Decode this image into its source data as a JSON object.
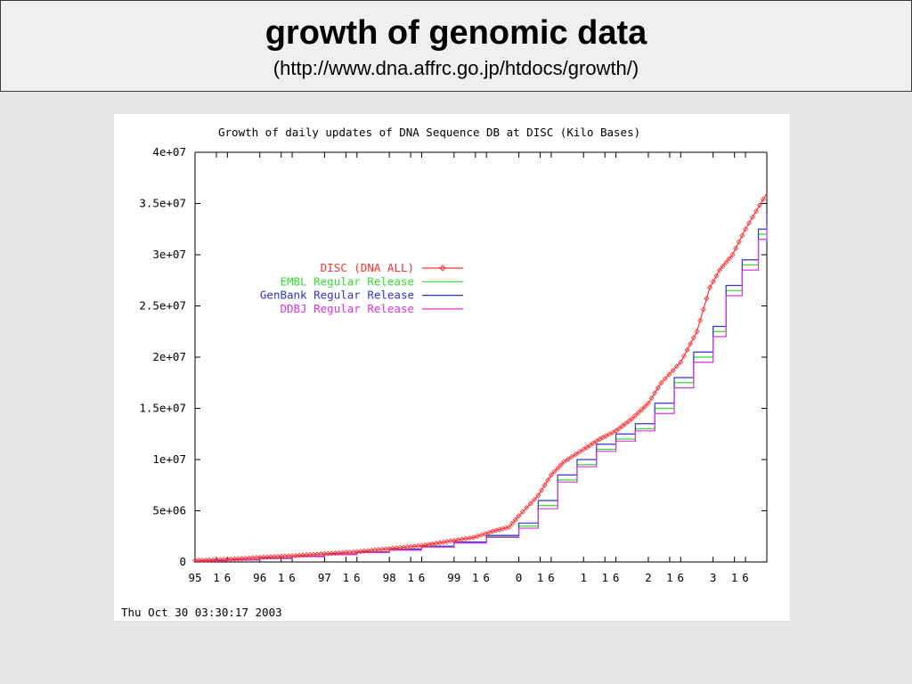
{
  "slide": {
    "title": "growth of genomic data",
    "subtitle": "(http://www.dna.affrc.go.jp/htdocs/growth/)"
  },
  "chart_data": {
    "type": "line",
    "title": "Growth of daily updates of DNA Sequence DB at DISC  (Kilo Bases)",
    "timestamp": "Thu Oct 30 03:30:17 2003",
    "ylim": [
      0,
      40000000
    ],
    "xlim": [
      1995.0,
      2003.83
    ],
    "yticks": [
      0,
      5000000,
      10000000,
      15000000,
      20000000,
      25000000,
      30000000,
      35000000,
      40000000
    ],
    "ytick_labels": [
      "0",
      "5e+06",
      "1e+07",
      "1.5e+07",
      "2e+07",
      "2.5e+07",
      "3e+07",
      "3.5e+07",
      "4e+07"
    ],
    "xtick_labels": [
      {
        "label": "95",
        "x": 1995.0
      },
      {
        "label": "1",
        "x": 1995.33
      },
      {
        "label": "6",
        "x": 1995.5
      },
      {
        "label": "96",
        "x": 1996.0
      },
      {
        "label": "1",
        "x": 1996.33
      },
      {
        "label": "6",
        "x": 1996.5
      },
      {
        "label": "97",
        "x": 1997.0
      },
      {
        "label": "1",
        "x": 1997.33
      },
      {
        "label": "6",
        "x": 1997.5
      },
      {
        "label": "98",
        "x": 1998.0
      },
      {
        "label": "1",
        "x": 1998.33
      },
      {
        "label": "6",
        "x": 1998.5
      },
      {
        "label": "99",
        "x": 1999.0
      },
      {
        "label": "1",
        "x": 1999.33
      },
      {
        "label": "6",
        "x": 1999.5
      },
      {
        "label": "0",
        "x": 2000.0
      },
      {
        "label": "1",
        "x": 2000.33
      },
      {
        "label": "6",
        "x": 2000.5
      },
      {
        "label": "1",
        "x": 2001.0
      },
      {
        "label": "1",
        "x": 2001.33
      },
      {
        "label": "6",
        "x": 2001.5
      },
      {
        "label": "2",
        "x": 2002.0
      },
      {
        "label": "1",
        "x": 2002.33
      },
      {
        "label": "6",
        "x": 2002.5
      },
      {
        "label": "3",
        "x": 2003.0
      },
      {
        "label": "1",
        "x": 2003.33
      },
      {
        "label": "6",
        "x": 2003.5
      }
    ],
    "legend_position": "upper-left",
    "grid": false,
    "series": [
      {
        "name": "DISC (DNA ALL)",
        "color": "#ff3333",
        "style": "line+diamond",
        "x": [
          1995.0,
          1995.5,
          1996.0,
          1996.5,
          1997.0,
          1997.5,
          1998.0,
          1998.5,
          1999.0,
          1999.3,
          1999.6,
          1999.85,
          2000.0,
          2000.3,
          2000.5,
          2000.7,
          2001.0,
          2001.25,
          2001.5,
          2001.75,
          2002.0,
          2002.2,
          2002.5,
          2002.75,
          2002.95,
          2003.1,
          2003.3,
          2003.5,
          2003.83
        ],
        "y": [
          150000,
          250000,
          450000,
          600000,
          800000,
          1000000,
          1300000,
          1600000,
          2100000,
          2400000,
          3000000,
          3400000,
          4500000,
          6500000,
          8500000,
          9800000,
          11000000,
          12000000,
          12800000,
          14000000,
          15500000,
          17500000,
          19500000,
          22500000,
          26800000,
          28500000,
          30000000,
          32500000,
          36000000
        ]
      },
      {
        "name": "EMBL Regular Release",
        "color": "#33dd33",
        "style": "step",
        "x": [
          1995.0,
          1995.5,
          1996.0,
          1996.5,
          1997.0,
          1997.5,
          1998.0,
          1998.5,
          1999.0,
          1999.5,
          2000.0,
          2000.3,
          2000.6,
          2000.9,
          2001.2,
          2001.5,
          2001.8,
          2002.1,
          2002.4,
          2002.7,
          2003.0,
          2003.2,
          2003.45,
          2003.7,
          2003.83
        ],
        "y": [
          100000,
          200000,
          350000,
          550000,
          750000,
          950000,
          1200000,
          1500000,
          1900000,
          2500000,
          3500000,
          5500000,
          8000000,
          9500000,
          11000000,
          12000000,
          13000000,
          15000000,
          17500000,
          20000000,
          22500000,
          26500000,
          29000000,
          32000000,
          33500000
        ]
      },
      {
        "name": "GenBank Regular Release",
        "color": "#3333cc",
        "style": "step",
        "x": [
          1995.0,
          1995.5,
          1996.0,
          1996.5,
          1997.0,
          1997.5,
          1998.0,
          1998.5,
          1999.0,
          1999.5,
          2000.0,
          2000.3,
          2000.6,
          2000.9,
          2001.2,
          2001.5,
          2001.8,
          2002.1,
          2002.4,
          2002.7,
          2003.0,
          2003.2,
          2003.45,
          2003.7,
          2003.83
        ],
        "y": [
          120000,
          230000,
          380000,
          580000,
          780000,
          980000,
          1250000,
          1550000,
          1950000,
          2600000,
          3800000,
          6000000,
          8500000,
          10000000,
          11500000,
          12500000,
          13500000,
          15500000,
          18000000,
          20500000,
          23000000,
          27000000,
          29500000,
          32500000,
          34000000
        ]
      },
      {
        "name": "DDBJ Regular Release",
        "color": "#dd33dd",
        "style": "step",
        "x": [
          1995.0,
          1995.5,
          1996.0,
          1996.5,
          1997.0,
          1997.5,
          1998.0,
          1998.5,
          1999.0,
          1999.5,
          2000.0,
          2000.3,
          2000.6,
          2000.9,
          2001.2,
          2001.5,
          2001.8,
          2002.1,
          2002.4,
          2002.7,
          2003.0,
          2003.2,
          2003.45,
          2003.7,
          2003.83
        ],
        "y": [
          90000,
          180000,
          330000,
          520000,
          720000,
          920000,
          1150000,
          1450000,
          1850000,
          2400000,
          3300000,
          5200000,
          7800000,
          9300000,
          10800000,
          11800000,
          12800000,
          14500000,
          17000000,
          19500000,
          22000000,
          26000000,
          28500000,
          31500000,
          33000000
        ]
      }
    ]
  }
}
